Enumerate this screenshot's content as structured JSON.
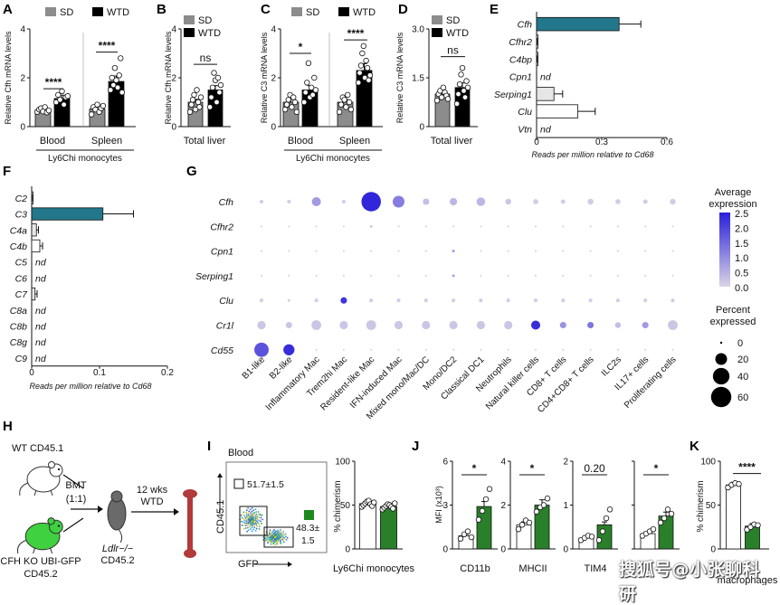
{
  "colors": {
    "teal": "#23778a",
    "green": "#2a7f2a",
    "gray": "#8c8c8c",
    "black": "#000000",
    "white": "#ffffff",
    "light": "#e6e6e6",
    "flow_gate_green": "#1e8a1e",
    "expr_low": "#d9d4e6",
    "expr_high": "#2a1fd9"
  },
  "icons": [
    "mouse-icon",
    "gfp-mouse-icon",
    "ldlr-mouse-icon",
    "bone-icon",
    "arrow-icon"
  ],
  "chart_data": [
    {
      "panel": "A",
      "type": "bar",
      "ylabel": "Relative Cfh mRNA levels",
      "ylim": [
        0,
        4
      ],
      "yticks": [
        "0",
        "2",
        "4"
      ],
      "legend": [
        "SD",
        "WTD"
      ],
      "categories": [
        "Blood",
        "Spleen"
      ],
      "group_label": "Ly6Chi monocytes",
      "series": [
        {
          "name": "SD",
          "values": [
            0.68,
            0.72
          ],
          "points": [
            [
              0.6,
              0.7,
              0.75,
              0.62,
              0.8,
              0.58,
              0.66
            ],
            [
              0.5,
              0.8,
              0.7,
              0.9,
              0.6,
              0.75,
              0.85
            ]
          ]
        },
        {
          "name": "WTD",
          "values": [
            1.15,
            1.85
          ],
          "points": [
            [
              1.0,
              1.3,
              1.1,
              1.45,
              0.9,
              1.2,
              1.25
            ],
            [
              1.5,
              2.0,
              1.7,
              2.4,
              1.9,
              1.6,
              2.1,
              2.8,
              1.4
            ]
          ]
        }
      ],
      "significance": [
        "****",
        "****"
      ]
    },
    {
      "panel": "B",
      "type": "bar",
      "ylabel": "Relative Cfh mRNA levels",
      "ylim": [
        0,
        4
      ],
      "yticks": [
        "0",
        "2",
        "4"
      ],
      "legend": [
        "SD",
        "WTD"
      ],
      "categories": [
        "Total liver"
      ],
      "series": [
        {
          "name": "SD",
          "values": [
            1.0
          ],
          "points": [
            [
              0.6,
              0.9,
              1.1,
              1.3,
              0.7,
              1.5,
              1.0,
              0.8,
              1.2
            ]
          ]
        },
        {
          "name": "WTD",
          "values": [
            1.5
          ],
          "points": [
            [
              0.8,
              1.2,
              1.6,
              2.2,
              1.9,
              1.0,
              2.0,
              1.4,
              1.7
            ]
          ]
        }
      ],
      "significance": [
        "ns"
      ]
    },
    {
      "panel": "C",
      "type": "bar",
      "ylabel": "Relative C3 mRNA levels",
      "ylim": [
        0,
        4
      ],
      "yticks": [
        "0",
        "2",
        "4"
      ],
      "legend": [
        "SD",
        "WTD"
      ],
      "categories": [
        "Blood",
        "Spleen"
      ],
      "group_label": "Ly6Chi monocytes",
      "series": [
        {
          "name": "SD",
          "values": [
            1.0,
            1.0
          ],
          "points": [
            [
              0.7,
              0.9,
              1.1,
              1.3,
              0.8,
              1.2,
              1.0,
              0.6
            ],
            [
              0.6,
              0.9,
              1.2,
              1.1,
              0.8,
              1.3,
              1.0,
              0.7
            ]
          ]
        },
        {
          "name": "WTD",
          "values": [
            1.5,
            2.3
          ],
          "points": [
            [
              1.0,
              1.4,
              1.8,
              2.6,
              1.2,
              1.6,
              1.3,
              2.0,
              1.5
            ],
            [
              1.8,
              2.2,
              2.5,
              3.0,
              3.3,
              2.0,
              2.7,
              2.4,
              1.9,
              2.1
            ]
          ]
        }
      ],
      "significance": [
        "*",
        "****"
      ]
    },
    {
      "panel": "D",
      "type": "bar",
      "ylabel": "Relative C3 mRNA levels",
      "ylim": [
        0,
        3
      ],
      "yticks": [
        "0",
        "1.5",
        "3.0"
      ],
      "legend": [
        "SD",
        "WTD"
      ],
      "categories": [
        "Total liver"
      ],
      "series": [
        {
          "name": "SD",
          "values": [
            1.0
          ],
          "points": [
            [
              0.8,
              1.0,
              1.1,
              0.9,
              1.2,
              1.05,
              0.95,
              0.85
            ]
          ]
        },
        {
          "name": "WTD",
          "values": [
            1.2
          ],
          "points": [
            [
              0.7,
              1.0,
              1.3,
              1.6,
              1.8,
              1.1,
              0.9,
              1.4,
              1.2
            ]
          ]
        }
      ],
      "significance": [
        "ns"
      ]
    },
    {
      "panel": "E",
      "type": "bar",
      "orientation": "horizontal",
      "xlabel": "Reads per million relative to Cd68",
      "xlim": [
        0,
        0.6
      ],
      "xticks": [
        "0",
        "0.3",
        "0.6"
      ],
      "categories": [
        "Cfh",
        "Cfhr2",
        "C4bp",
        "Cpn1",
        "Serping1",
        "Clu",
        "Vtn"
      ],
      "values": [
        0.38,
        0.003,
        0.002,
        null,
        0.08,
        0.19,
        null
      ],
      "errors": [
        0.1,
        0.001,
        0.001,
        null,
        0.04,
        0.08,
        null
      ],
      "labels": [
        "",
        "",
        "",
        "nd",
        "",
        "",
        "nd"
      ]
    },
    {
      "panel": "F",
      "type": "bar",
      "orientation": "horizontal",
      "xlabel": "Reads per million relative to Cd68",
      "xlim": [
        0,
        0.2
      ],
      "xticks": [
        "0",
        "0.1",
        "0.2"
      ],
      "categories": [
        "C2",
        "C3",
        "C4a",
        "C4b",
        "C5",
        "C6",
        "C7",
        "C8a",
        "C8b",
        "C8g",
        "C9"
      ],
      "values": [
        0.001,
        0.105,
        0.007,
        0.012,
        null,
        null,
        0.005,
        null,
        null,
        null,
        null
      ],
      "errors": [
        0.0005,
        0.045,
        0.003,
        0.004,
        null,
        null,
        0.003,
        null,
        null,
        null,
        null
      ],
      "labels": [
        "",
        "",
        "",
        "",
        "nd",
        "nd",
        "",
        "nd",
        "nd",
        "nd",
        "nd"
      ]
    },
    {
      "panel": "G",
      "type": "scatter",
      "subtype": "dotplot",
      "genes": [
        "Cfh",
        "Cfhr2",
        "Cpn1",
        "Serping1",
        "Clu",
        "Cr1l",
        "Cd55"
      ],
      "cell_types": [
        "B1-like",
        "B2-like",
        "Inflammatory Mac",
        "Trem2hi Mac",
        "Resident-like Mac",
        "IFN-induced Mac",
        "Mixed mono/Mac/DC",
        "Mono/DC2",
        "Classical DC1",
        "Neutrophils",
        "Natural killer cells",
        "CD8+ T cells",
        "CD4+CD8+ T cells",
        "ILC2s",
        "IL17+ cells",
        "Proliferating cells"
      ],
      "color_legend_title": "Average expression",
      "color_ticks": [
        "2.5",
        "2.0",
        "1.5",
        "1.0",
        "0.5",
        "0.0"
      ],
      "size_legend_title": "Percent expressed",
      "size_ticks": [
        "0",
        "20",
        "40",
        "60"
      ],
      "percent": [
        [
          2,
          2,
          12,
          2,
          55,
          20,
          6,
          8,
          11,
          5,
          4,
          3,
          5,
          4,
          3,
          5
        ],
        [
          0,
          0,
          0,
          0,
          1,
          0,
          0,
          0,
          0,
          0,
          0,
          0,
          0,
          0,
          0,
          0
        ],
        [
          0,
          0,
          0,
          0,
          0,
          0,
          0,
          1,
          0,
          0,
          0,
          0,
          0,
          0,
          0,
          0
        ],
        [
          0,
          0,
          0,
          0,
          0,
          0,
          0,
          1,
          0,
          0,
          0,
          0,
          0,
          0,
          0,
          0
        ],
        [
          2,
          1,
          2,
          6,
          2,
          2,
          2,
          2,
          2,
          2,
          2,
          2,
          2,
          2,
          2,
          2
        ],
        [
          10,
          6,
          14,
          10,
          14,
          10,
          10,
          10,
          10,
          10,
          12,
          6,
          6,
          5,
          6,
          14
        ],
        [
          30,
          18,
          0,
          0,
          0,
          0,
          0,
          0,
          0,
          0,
          0,
          0,
          0,
          0,
          0,
          0
        ]
      ],
      "expression": [
        [
          0.1,
          0.1,
          0.8,
          0.1,
          2.4,
          1.2,
          0.3,
          0.4,
          0.4,
          0.2,
          0.1,
          0.1,
          0.1,
          0.1,
          0.1,
          0.1
        ],
        [
          0,
          0,
          0,
          0,
          0.2,
          0,
          0,
          0,
          0,
          0,
          0,
          0,
          0,
          0,
          0,
          0
        ],
        [
          0,
          0,
          0,
          0,
          0,
          0,
          0,
          0.8,
          0,
          0,
          0,
          0,
          0,
          0,
          0,
          0
        ],
        [
          0,
          0,
          0,
          0,
          0,
          0,
          0,
          0.8,
          0,
          0,
          0,
          0,
          0,
          0,
          0,
          0
        ],
        [
          0.1,
          0.1,
          0.1,
          2.2,
          0.1,
          0.1,
          0.1,
          0.1,
          0.1,
          0.1,
          0.1,
          0.1,
          0.1,
          0.1,
          0.1,
          0.1
        ],
        [
          0.2,
          0.2,
          0.2,
          0.2,
          0.2,
          0.2,
          0.2,
          0.2,
          0.2,
          0.2,
          2.3,
          0.9,
          1.3,
          0.3,
          0.8,
          0.2
        ],
        [
          1.8,
          2.3,
          0,
          0,
          0,
          0,
          0,
          0,
          0,
          0,
          0,
          0,
          0,
          0,
          0,
          0
        ]
      ]
    },
    {
      "panel": "I",
      "type": "bar",
      "ylabel": "% chimerism",
      "ylim": [
        0,
        100
      ],
      "yticks": [
        "0",
        "50",
        "100"
      ],
      "categories": [
        "Ly6Chi monocytes"
      ],
      "series": [
        {
          "name": "WT",
          "values": [
            51.7
          ],
          "points": [
            [
              48,
              50,
              52,
              54,
              55,
              51,
              49,
              53
            ]
          ]
        },
        {
          "name": "CFH KO",
          "values": [
            48.3
          ],
          "points": [
            [
              45,
              47,
              49,
              51,
              50,
              48,
              46,
              52
            ]
          ]
        }
      ]
    },
    {
      "panel": "J",
      "type": "bar",
      "ylabel": "MFI (x10³)",
      "subplots": [
        {
          "label": "CD11b",
          "ylim": [
            0,
            6
          ],
          "yticks": [
            "0",
            "3",
            "6"
          ],
          "values": [
            0.9,
            2.9
          ],
          "points": [
            [
              0.7,
              1.0,
              1.2,
              0.8
            ],
            [
              2.0,
              2.6,
              3.4,
              4.1
            ]
          ],
          "significance": "*"
        },
        {
          "label": "MHCII",
          "ylim": [
            0,
            4
          ],
          "yticks": [
            "0",
            "2",
            "4"
          ],
          "values": [
            1.1,
            2.0
          ],
          "points": [
            [
              0.9,
              1.1,
              1.3,
              1.2
            ],
            [
              1.7,
              1.9,
              2.0,
              2.3
            ]
          ],
          "significance": "*"
        },
        {
          "label": "TIM4",
          "ylim": [
            0,
            2
          ],
          "yticks": [
            "0",
            "1",
            "2"
          ],
          "values": [
            0.25,
            0.55
          ],
          "points": [
            [
              0.2,
              0.25,
              0.3,
              0.28
            ],
            [
              0.2,
              0.4,
              0.7,
              0.9
            ]
          ],
          "significance": "0.20"
        },
        {
          "label": "",
          "ylim": [
            0,
            2
          ],
          "yticks": [
            "",
            "",
            ""
          ],
          "values": [
            0.35,
            0.75
          ],
          "points": [
            [
              0.3,
              0.35,
              0.4,
              0.45
            ],
            [
              0.6,
              0.7,
              0.9,
              0.8
            ]
          ],
          "significance": "*"
        }
      ]
    },
    {
      "panel": "K",
      "type": "bar",
      "ylabel": "% chimerism",
      "ylim": [
        0,
        100
      ],
      "yticks": [
        "0",
        "50",
        "100"
      ],
      "categories": [
        "macrophages"
      ],
      "series": [
        {
          "name": "WT",
          "values": [
            73
          ],
          "points": [
            [
              70,
              73,
              75,
              74
            ]
          ]
        },
        {
          "name": "CFH KO",
          "values": [
            26
          ],
          "points": [
            [
              22,
              25,
              28,
              27
            ]
          ]
        }
      ],
      "significance": [
        "****"
      ]
    }
  ],
  "schematic": {
    "panel": "H",
    "donor_wt": "WT CD45.1",
    "donor_ko_line1": "CFH KO UBI-GFP",
    "donor_ko_line2": "CD45.2",
    "bmt_line1": "BMT",
    "bmt_line2": "(1:1)",
    "recipient_line1": "Ldlr−/−",
    "recipient_line2": "CD45.2",
    "diet_line1": "12 wks",
    "diet_line2": "WTD"
  },
  "flow": {
    "panel": "I",
    "title": "Blood",
    "gate_wt": "51.7±1.5",
    "gate_ko_line1": "48.3±",
    "gate_ko_line2": "1.5",
    "xlabel": "GFP",
    "ylabel": "CD45.1"
  },
  "watermark": "搜狐号@小张聊科研"
}
